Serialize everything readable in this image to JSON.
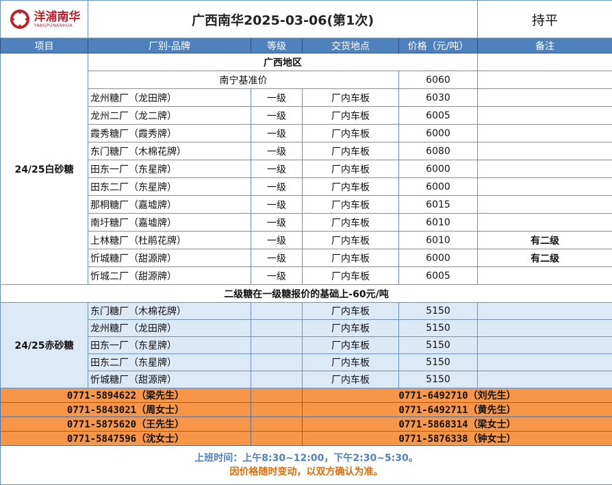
{
  "logo": {
    "cn": "洋浦南华",
    "en": "YANGPUNANHUA"
  },
  "title": "广西南华2025-03-06(第1次)",
  "trend": "持平",
  "headers": [
    "项目",
    "厂别-品牌",
    "等级",
    "交货地点",
    "价格（元/吨）",
    "备注"
  ],
  "region": "广西地区",
  "base": {
    "label": "南宁基准价",
    "price": "6060"
  },
  "white": {
    "category": "24/25白砂糖",
    "rows": [
      {
        "factory": "龙州糖厂（龙田牌）",
        "grade": "一级",
        "place": "厂内车板",
        "price": "6030",
        "note": ""
      },
      {
        "factory": "龙州二厂（龙二牌）",
        "grade": "一级",
        "place": "厂内车板",
        "price": "6005",
        "note": ""
      },
      {
        "factory": "霞秀糖厂（霞秀牌）",
        "grade": "一级",
        "place": "厂内车板",
        "price": "6000",
        "note": ""
      },
      {
        "factory": "东门糖厂（木棉花牌）",
        "grade": "一级",
        "place": "厂内车板",
        "price": "6080",
        "note": ""
      },
      {
        "factory": "田东一厂（东星牌）",
        "grade": "一级",
        "place": "厂内车板",
        "price": "6000",
        "note": ""
      },
      {
        "factory": "田东二厂（东星牌）",
        "grade": "一级",
        "place": "厂内车板",
        "price": "6000",
        "note": ""
      },
      {
        "factory": "那桐糖厂（嘉墟牌）",
        "grade": "一级",
        "place": "厂内车板",
        "price": "6015",
        "note": ""
      },
      {
        "factory": "南圩糖厂（嘉墟牌）",
        "grade": "一级",
        "place": "厂内车板",
        "price": "6010",
        "note": ""
      },
      {
        "factory": "上林糖厂（杜鹃花牌）",
        "grade": "一级",
        "place": "厂内车板",
        "price": "6010",
        "note": "有二级"
      },
      {
        "factory": "忻城糖厂（甜源牌）",
        "grade": "一级",
        "place": "厂内车板",
        "price": "6000",
        "note": "有二级"
      },
      {
        "factory": "忻城二厂（甜源牌）",
        "grade": "一级",
        "place": "厂内车板",
        "price": "6005",
        "note": ""
      }
    ]
  },
  "note": "二级糖在一级糖报价的基础上-60元/吨",
  "red": {
    "category": "24/25赤砂糖",
    "rows": [
      {
        "factory": "东门糖厂（木棉花牌）",
        "place": "厂内车板",
        "price": "5150"
      },
      {
        "factory": "龙州糖厂（龙田牌）",
        "place": "厂内车板",
        "price": "5150"
      },
      {
        "factory": "田东一厂（东星牌）",
        "place": "厂内车板",
        "price": "5150"
      },
      {
        "factory": "田东二厂（东星牌）",
        "place": "厂内车板",
        "price": "5150"
      },
      {
        "factory": "忻城糖厂（甜源牌）",
        "place": "厂内车板",
        "price": "5150"
      }
    ]
  },
  "contacts": [
    [
      "0771-5894622（梁先生）",
      "0771-6492710（刘先生）"
    ],
    [
      "0771-5843021（周女士）",
      "0771-6492711（黄先生）"
    ],
    [
      "0771-5875620（王先生）",
      "0771-5868314（梁女士）"
    ],
    [
      "0771-5847596（沈女士）",
      "0771-5876338（钟女士）"
    ]
  ],
  "footer": {
    "hours": "上班时间：上午8:30~12:00，下午2:30~5:30。",
    "disclaimer": "因价格随时变动，以双方确认为准。"
  },
  "colors": {
    "header": "#4f81bd",
    "contacts": "#f79646",
    "hours": "#4f81bd",
    "disclaimer": "#e36c09",
    "red_sugar_bg": "#dce9f7"
  }
}
